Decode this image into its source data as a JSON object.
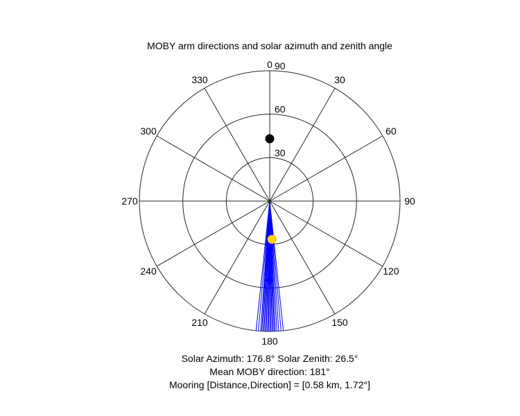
{
  "chart_data": {
    "type": "polar",
    "title": "MOBY arm directions and solar azimuth and zenith angle",
    "theta_zero": "top",
    "theta_direction": "clockwise",
    "theta_ticks": [
      0,
      30,
      60,
      90,
      120,
      150,
      180,
      210,
      240,
      270,
      300,
      330
    ],
    "theta_tick_labels": [
      "0",
      "30",
      "60",
      "90",
      "120",
      "150",
      "180",
      "210",
      "240",
      "270",
      "300",
      "330"
    ],
    "r_ticks": [
      30,
      60,
      90
    ],
    "r_tick_labels": [
      "30",
      "60",
      "90"
    ],
    "r_lim": [
      0,
      90
    ],
    "r_tick_label_angle": 0,
    "grid": true,
    "series": [
      {
        "kind": "radial-lines",
        "color": "#0000ff",
        "r": 90,
        "theta": [
          174.0,
          175.0,
          176.0,
          176.8,
          177.5,
          178.0,
          178.5,
          179.0,
          179.5,
          180.0,
          180.5,
          181.0,
          181.5,
          182.0,
          182.5,
          183.0,
          183.5,
          184.0,
          185.0,
          186.0
        ]
      },
      {
        "kind": "point",
        "color": "#000000",
        "theta": 0,
        "r": 43
      },
      {
        "kind": "point",
        "color": "#ffd700",
        "theta": 176.8,
        "r": 26.5
      }
    ],
    "captions": [
      "Solar Azimuth: 176.8° Solar Zenith: 26.5°",
      "Mean MOBY direction: 181°",
      "Mooring [Distance,Direction] = [0.58 km, 1.72°]"
    ]
  }
}
